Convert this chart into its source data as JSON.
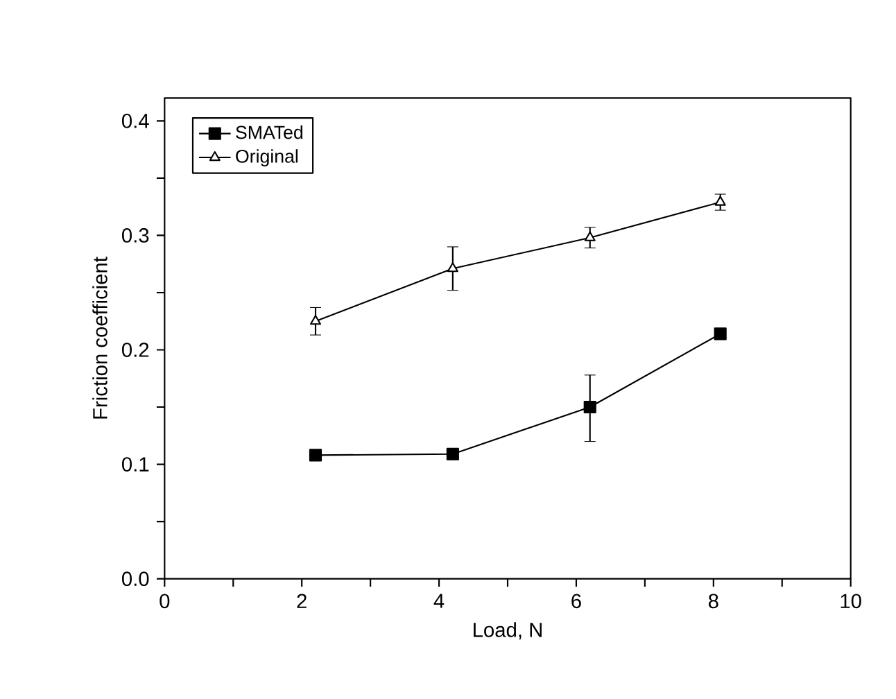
{
  "chart_data": {
    "type": "line",
    "xlabel": "Load, N",
    "ylabel": "Friction coefficient",
    "x": [
      2.2,
      4.2,
      6.2,
      8.1
    ],
    "series": [
      {
        "name": "SMATed",
        "color": "#000000",
        "marker": "square",
        "values": [
          0.108,
          0.109,
          0.15,
          0.214
        ],
        "errors": [
          null,
          null,
          [
            0.12,
            0.178
          ],
          null
        ]
      },
      {
        "name": "Original",
        "color": "#000000",
        "marker": "triangle",
        "values": [
          0.225,
          0.271,
          0.298,
          0.329
        ],
        "errors": [
          [
            0.213,
            0.237
          ],
          [
            0.252,
            0.29
          ],
          [
            0.289,
            0.307
          ],
          [
            0.322,
            0.336
          ]
        ]
      }
    ],
    "xlim": [
      0,
      10
    ],
    "ylim": [
      0,
      0.42
    ],
    "xticks": [
      0,
      {
        "value": 1,
        "label": null
      },
      2,
      {
        "value": 3,
        "label": null
      },
      4,
      {
        "value": 5,
        "label": null
      },
      6,
      {
        "value": 7,
        "label": null
      },
      8,
      {
        "value": 9,
        "label": null
      },
      10
    ],
    "yticks": [
      {
        "value": 0,
        "label": "0.0"
      },
      {
        "value": 0.05,
        "label": null
      },
      0.1,
      {
        "value": 0.15,
        "label": null
      },
      0.2,
      {
        "value": 0.25,
        "label": null
      },
      0.3,
      {
        "value": 0.35,
        "label": null
      },
      0.4
    ],
    "grid": false,
    "legend": "top left",
    "line_style": "solid"
  }
}
